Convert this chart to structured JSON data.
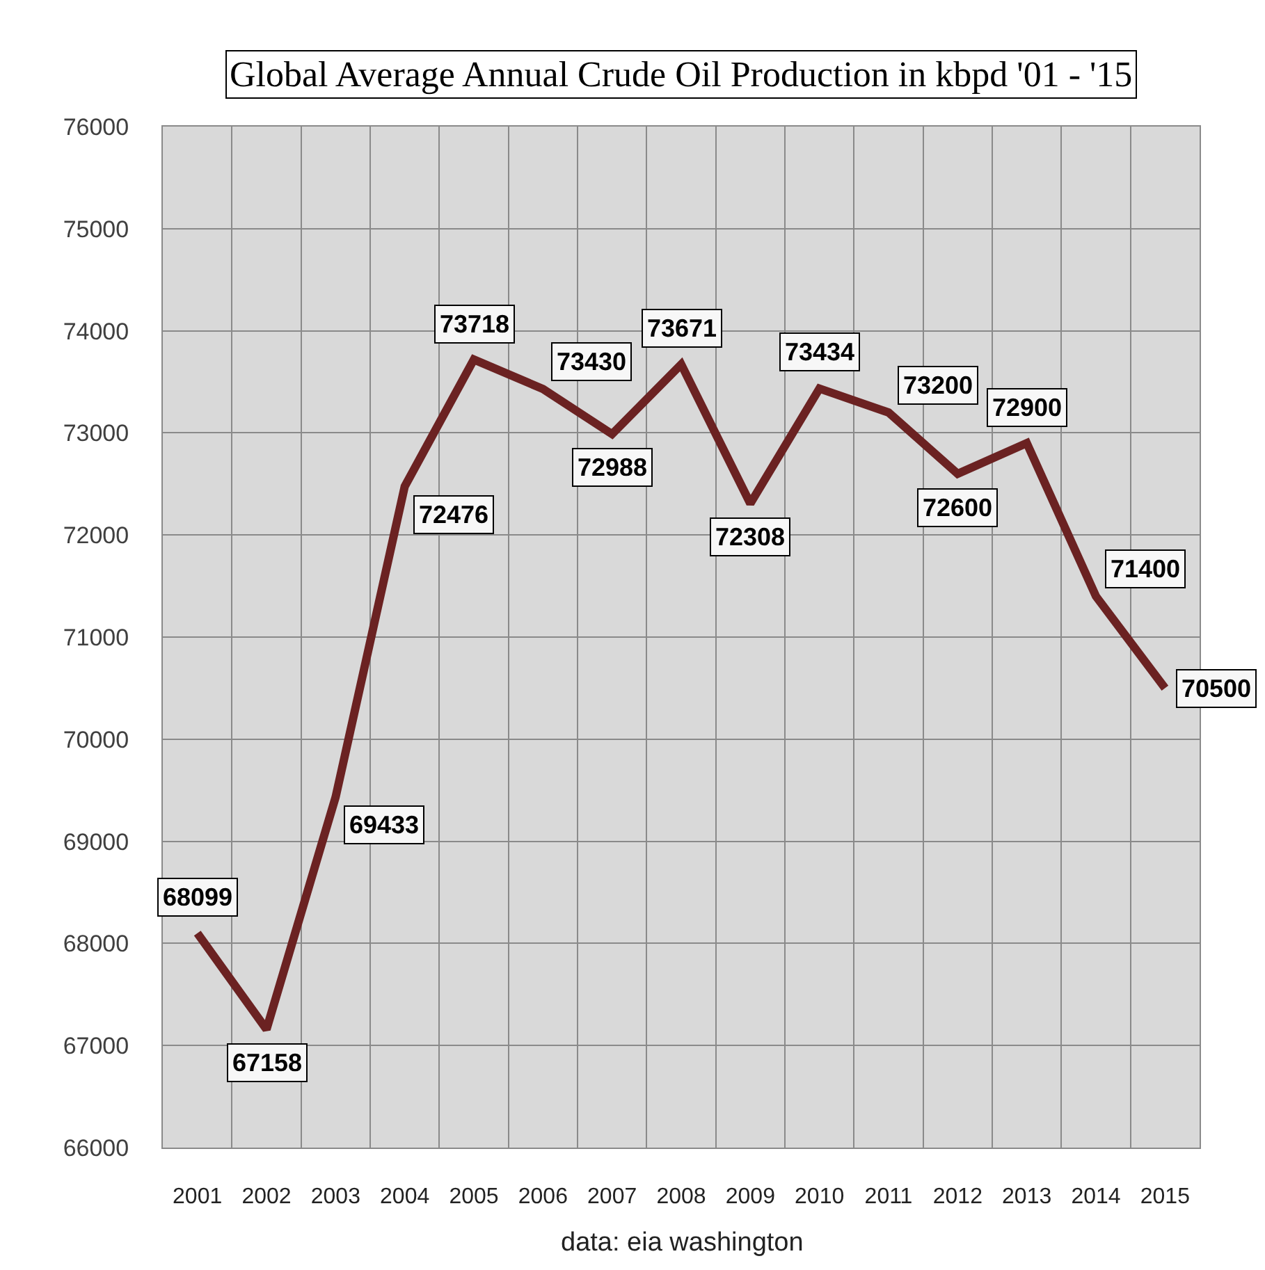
{
  "chart_data": {
    "type": "line",
    "title": "Global Average Annual Crude Oil Production in kbpd '01 - '15",
    "categories": [
      "2001",
      "2002",
      "2003",
      "2004",
      "2005",
      "2006",
      "2007",
      "2008",
      "2009",
      "2010",
      "2011",
      "2012",
      "2013",
      "2014",
      "2015"
    ],
    "series": [
      {
        "color": "#6b2222",
        "values": [
          68099,
          67158,
          69433,
          72476,
          73718,
          73430,
          72988,
          73671,
          72308,
          73434,
          73200,
          72600,
          72900,
          71400,
          70500
        ]
      }
    ],
    "ylim": [
      66000,
      76000
    ],
    "yticks": [
      66000,
      67000,
      68000,
      69000,
      70000,
      71000,
      72000,
      73000,
      74000,
      75000,
      76000
    ],
    "grid": true,
    "data_labels": true,
    "line_style": "solid",
    "annotations": [
      "data: eia washington"
    ]
  }
}
